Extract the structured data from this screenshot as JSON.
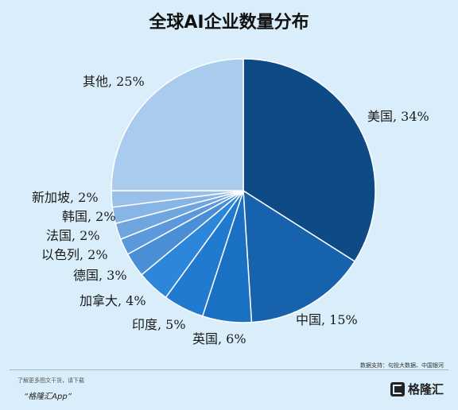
{
  "chart_data": {
    "type": "pie",
    "title": "全球AI企业数量分布",
    "slices": [
      {
        "name": "美国",
        "value": 34,
        "label": "美国, 34%",
        "color": "#0d4a86"
      },
      {
        "name": "中国",
        "value": 15,
        "label": "中国, 15%",
        "color": "#1762ac"
      },
      {
        "name": "英国",
        "value": 6,
        "label": "英国, 6%",
        "color": "#1a70c2"
      },
      {
        "name": "印度",
        "value": 5,
        "label": "印度, 5%",
        "color": "#1f7ad0"
      },
      {
        "name": "加拿大",
        "value": 4,
        "label": "加拿大, 4%",
        "color": "#2c86da"
      },
      {
        "name": "德国",
        "value": 3,
        "label": "德国, 3%",
        "color": "#4a8fd6"
      },
      {
        "name": "以色列",
        "value": 2,
        "label": "以色列, 2%",
        "color": "#5b99dc"
      },
      {
        "name": "法国",
        "value": 2,
        "label": "法国, 2%",
        "color": "#6fa6e0"
      },
      {
        "name": "韩国",
        "value": 2,
        "label": "韩国, 2%",
        "color": "#86b5e6"
      },
      {
        "name": "新加坡",
        "value": 2,
        "label": "新加坡, 2%",
        "color": "#98c0ea"
      },
      {
        "name": "其他",
        "value": 25,
        "label": "其他, 25%",
        "color": "#a9cbee"
      }
    ]
  },
  "source": "数据支持：句投大数据、中国银河",
  "footer": {
    "note": "了解更多图文干货，请下载",
    "app": "“格隆汇App”",
    "logo_text": "格隆汇"
  }
}
